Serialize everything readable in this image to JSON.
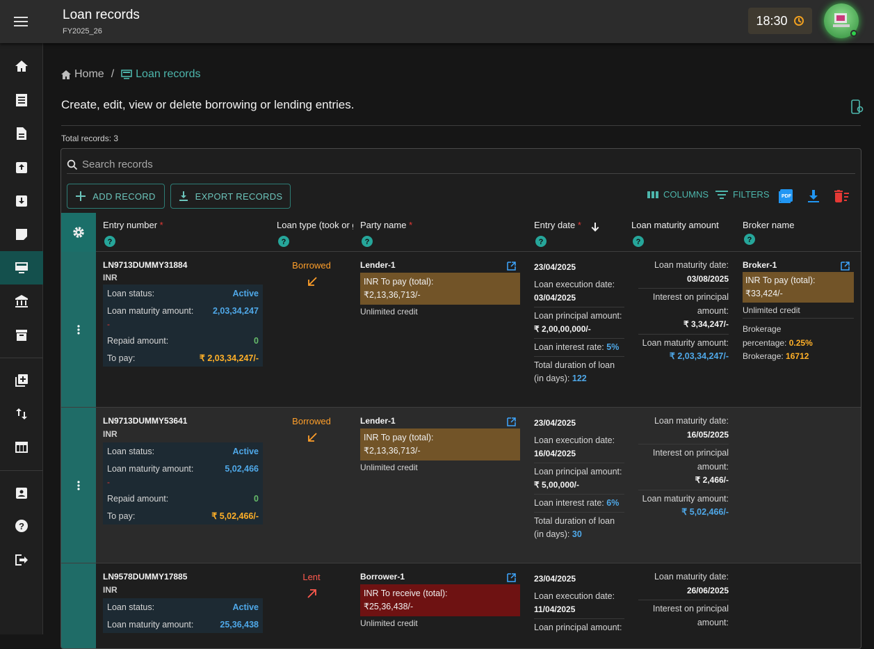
{
  "header": {
    "title": "Loan records",
    "subtitle": "FY2025_26",
    "time": "18:30"
  },
  "breadcrumb": {
    "home": "Home",
    "separator": "/",
    "current": "Loan records"
  },
  "page": {
    "description": "Create, edit, view or delete borrowing or lending entries.",
    "total_records": "Total records: 3"
  },
  "search": {
    "placeholder": "Search records"
  },
  "toolbar": {
    "add_label": "ADD RECORD",
    "export_label": "EXPORT RECORDS",
    "columns_label": "COLUMNS",
    "filters_label": "FILTERS"
  },
  "columns": {
    "entry_number": "Entry number",
    "loan_type": "Loan type (took or gave)",
    "party_name": "Party name",
    "entry_date": "Entry date",
    "maturity_amount": "Loan maturity amount",
    "broker_name": "Broker name",
    "required_mark": "*"
  },
  "labels": {
    "loan_status": "Loan status:",
    "loan_maturity_amount": "Loan maturity amount:",
    "repaid_amount": "Repaid amount:",
    "to_pay": "To pay:",
    "dash": "-",
    "unlimited_credit": "Unlimited credit",
    "loan_execution_date": "Loan execution date:",
    "loan_principal_amount": "Loan principal amount:",
    "loan_interest_rate": "Loan interest rate:",
    "total_duration": "Total duration of loan (in days):",
    "loan_maturity_date": "Loan maturity date:",
    "interest_on_principal": "Interest on principal amount:",
    "loan_maturity": "Loan maturity amount:",
    "brokerage_percentage": "Brokerage percentage:",
    "brokerage": "Brokerage:"
  },
  "rows": [
    {
      "entry_number": "LN9713DUMMY31884",
      "currency": "INR",
      "status": "Active",
      "maturity_amount": "2,03,34,247",
      "repaid": "0",
      "to_pay": "₹ 2,03,34,247/-",
      "loan_type": "Borrowed",
      "party": "Lender-1",
      "party_box_title": "INR To pay (total):",
      "party_box_amount": "₹2,13,36,713/-",
      "entry_date": "23/04/2025",
      "execution_date": "03/04/2025",
      "principal": "₹ 2,00,00,000/-",
      "rate": "5%",
      "duration": "122",
      "maturity_date": "03/08/2025",
      "interest": "₹ 3,34,247/-",
      "maturity_total": "₹ 2,03,34,247/-",
      "broker": "Broker-1",
      "broker_box_title": "INR To pay (total):",
      "broker_box_amount": "₹33,424/-",
      "brokerage_pct": "0.25%",
      "brokerage": "16712"
    },
    {
      "entry_number": "LN9713DUMMY53641",
      "currency": "INR",
      "status": "Active",
      "maturity_amount": "5,02,466",
      "repaid": "0",
      "to_pay": "₹ 5,02,466/-",
      "loan_type": "Borrowed",
      "party": "Lender-1",
      "party_box_title": "INR To pay (total):",
      "party_box_amount": "₹2,13,36,713/-",
      "entry_date": "23/04/2025",
      "execution_date": "16/04/2025",
      "principal": "₹ 5,00,000/-",
      "rate": "6%",
      "duration": "30",
      "maturity_date": "16/05/2025",
      "interest": "₹ 2,466/-",
      "maturity_total": "₹ 5,02,466/-"
    },
    {
      "entry_number": "LN9578DUMMY17885",
      "currency": "INR",
      "status": "Active",
      "maturity_amount": "25,36,438",
      "loan_type": "Lent",
      "party": "Borrower-1",
      "party_box_title": "INR To receive (total):",
      "party_box_amount": "₹25,36,438/-",
      "entry_date": "23/04/2025",
      "execution_date": "11/04/2025",
      "maturity_date": "26/06/2025"
    }
  ],
  "colors": {
    "accent": "#4db6ac",
    "teal_handle": "#1f6c67",
    "orange": "#ffb028",
    "red": "#e53935",
    "blue": "#4fa8e8",
    "green": "#66bb6a"
  }
}
